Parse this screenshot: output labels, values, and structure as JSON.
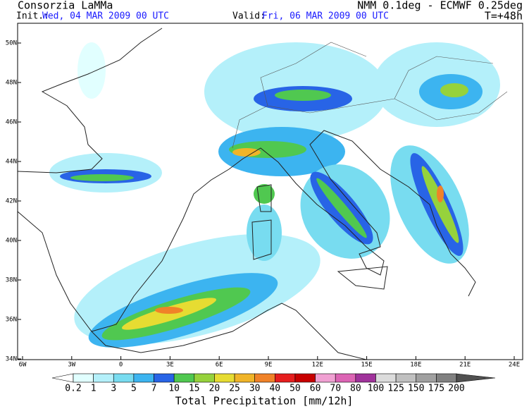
{
  "header": {
    "left_title": "Consorzia LaMMa",
    "init_label": "Init.:",
    "init_value": "Wed, 04 MAR 2009  00 UTC",
    "valid_label": "Valid:",
    "valid_value": "Fri, 06 MAR 2009  00 UTC",
    "model": "NMM 0.1deg - ECMWF 0.25deg",
    "lead": "T=+48h"
  },
  "map": {
    "lat_labels": [
      "50N",
      "48N",
      "46N",
      "44N",
      "42N",
      "40N",
      "38N",
      "36N",
      "34N"
    ],
    "lon_labels": [
      "6W",
      "3W",
      "0",
      "3E",
      "6E",
      "9E",
      "12E",
      "15E",
      "18E",
      "21E",
      "24E"
    ]
  },
  "colorbar": {
    "labels": [
      "0.2",
      "1",
      "3",
      "5",
      "7",
      "10",
      "15",
      "20",
      "25",
      "30",
      "40",
      "50",
      "60",
      "70",
      "80",
      "100",
      "125",
      "150",
      "175",
      "200"
    ],
    "colors": [
      "#ffffff",
      "#e1ffff",
      "#b4f0fa",
      "#78dcf0",
      "#3cb4f0",
      "#2864e6",
      "#50c850",
      "#96d23c",
      "#e6dc32",
      "#f0b428",
      "#f08228",
      "#e61e1e",
      "#c80000",
      "#f0a0d2",
      "#dc64b4",
      "#a0329b",
      "#dcdcdc",
      "#c0c0c0",
      "#a0a0a0",
      "#808080",
      "#505050"
    ],
    "title": "Total Precipitation [mm/12h]"
  }
}
